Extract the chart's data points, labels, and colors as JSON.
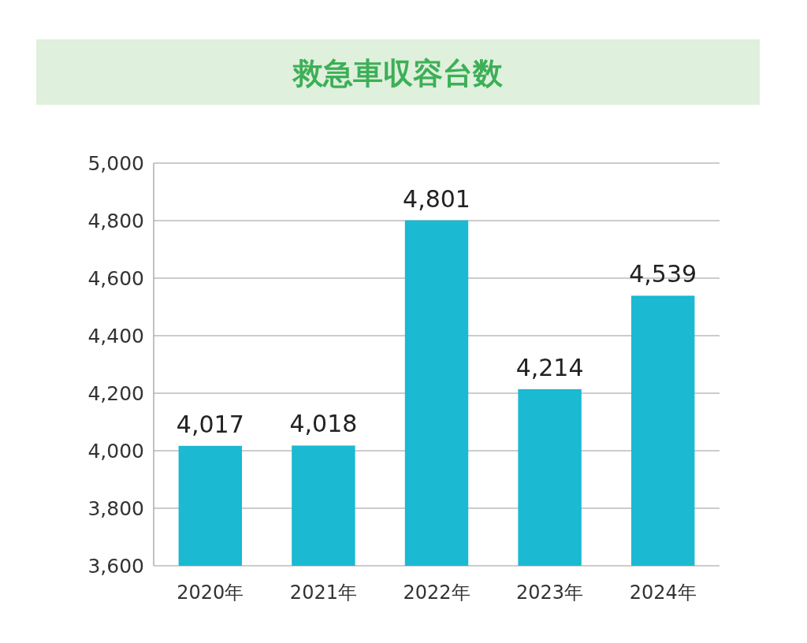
{
  "chart_data": {
    "type": "bar",
    "title": "救急車収容台数",
    "categories": [
      "2020年",
      "2021年",
      "2022年",
      "2023年",
      "2024年"
    ],
    "values": [
      4017,
      4018,
      4801,
      4214,
      4539
    ],
    "value_labels": [
      "4,017",
      "4,018",
      "4,801",
      "4,214",
      "4,539"
    ],
    "color": "#1bb9d2",
    "ylim": [
      3600,
      5000
    ],
    "yticks": [
      {
        "value": 3600,
        "label": "3,600"
      },
      {
        "value": 3800,
        "label": "3,800"
      },
      {
        "value": 4000,
        "label": "4,000"
      },
      {
        "value": 4200,
        "label": "4,200"
      },
      {
        "value": 4400,
        "label": "4,400"
      },
      {
        "value": 4600,
        "label": "4,600"
      },
      {
        "value": 4800,
        "label": "4,800"
      },
      {
        "value": 5000,
        "label": "5,000"
      }
    ],
    "grid": "y"
  }
}
